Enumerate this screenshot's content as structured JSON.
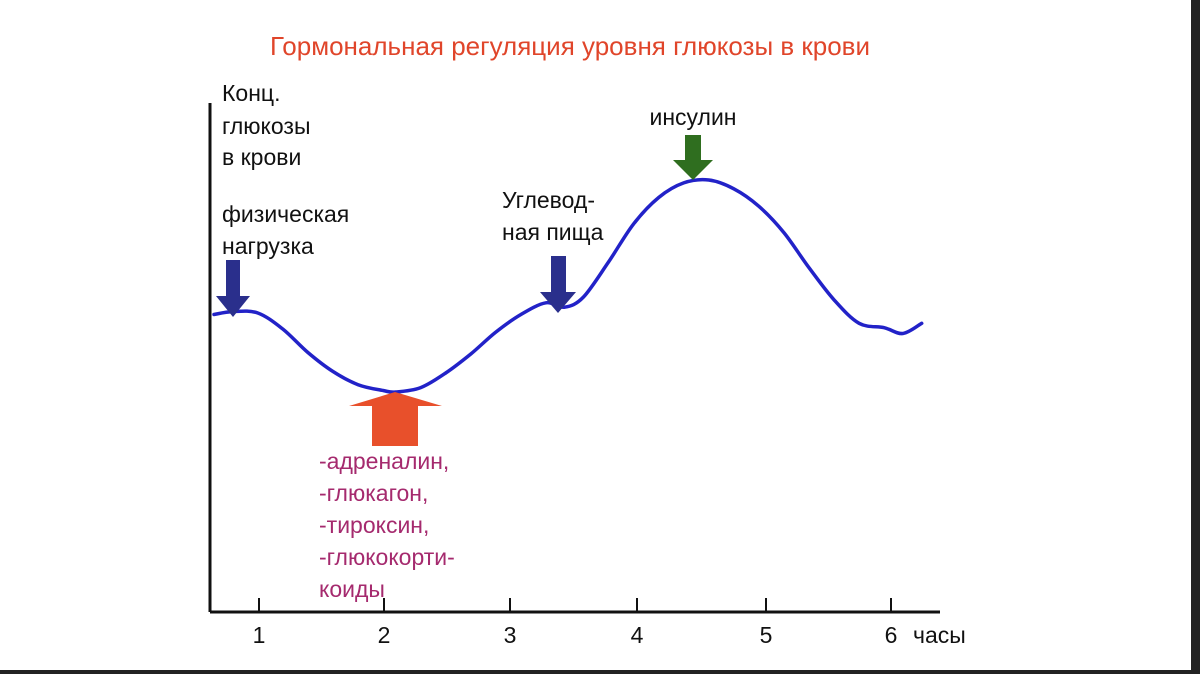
{
  "colors": {
    "title": "#e0452a",
    "curve": "#2222c8",
    "axis": "#111111",
    "dark_arrow": "#2a2f8c",
    "insulin": "#2f6e1f",
    "counter_hormones_arrow": "#e8502b",
    "counter_hormones_text": "#a52a6e"
  },
  "chart_data": {
    "type": "line",
    "title": "Гормональная регуляция уровня глюкозы в крови",
    "ylabel": [
      "Конц.",
      "глюкозы",
      "в крови"
    ],
    "xlabel": "часы",
    "x_ticks": [
      "1",
      "2",
      "3",
      "4",
      "5",
      "6"
    ],
    "xlim": [
      0.65,
      6.35
    ],
    "ylim": [
      0,
      10
    ],
    "grid": false,
    "series": [
      {
        "x": [
          0.65,
          0.8,
          1.0,
          1.2,
          1.4,
          1.6,
          1.8,
          2.0,
          2.1,
          2.3,
          2.5,
          2.7,
          2.9,
          3.1,
          3.3,
          3.45,
          3.6,
          3.8,
          4.0,
          4.2,
          4.4,
          4.6,
          4.8,
          5.0,
          5.2,
          5.4,
          5.6,
          5.8,
          6.0,
          6.15,
          6.3
        ],
        "y": [
          5.6,
          5.7,
          5.65,
          5.1,
          4.3,
          3.65,
          3.2,
          3.0,
          2.95,
          3.1,
          3.6,
          4.25,
          5.0,
          5.6,
          6.0,
          5.85,
          6.2,
          7.4,
          8.7,
          9.6,
          10.1,
          10.2,
          9.9,
          9.3,
          8.4,
          7.2,
          6.1,
          5.3,
          5.15,
          4.95,
          5.3
        ]
      }
    ],
    "annotations": [
      {
        "id": "exercise",
        "x": 0.8,
        "lines": [
          "физическая",
          "нагрузка"
        ]
      },
      {
        "id": "carb_food",
        "x": 3.4,
        "lines": [
          "Углевод-",
          "ная пища"
        ]
      },
      {
        "id": "insulin",
        "x": 4.45,
        "lines": [
          "инсулин"
        ]
      },
      {
        "id": "counter_hormones",
        "x": 2.1,
        "lines": [
          "-адреналин,",
          "-глюкагон,",
          "-тироксин,",
          "-глюкокорти-",
          "коиды"
        ]
      }
    ]
  }
}
